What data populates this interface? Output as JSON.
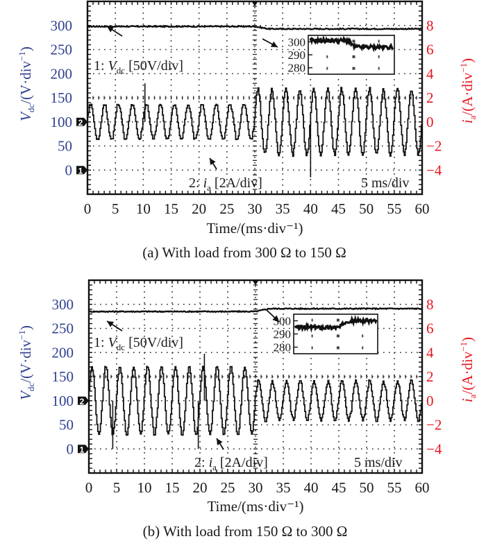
{
  "chart_data": [
    {
      "type": "line",
      "panel": "a",
      "caption": "(a) With load from 300 Ω to 150 Ω",
      "xlabel": "Time/(ms·div⁻¹)",
      "ylabel_left": {
        "main": "V",
        "sub": "dc",
        "rest": "/(V·div",
        "sup": "−1",
        "close": ")"
      },
      "ylabel_right": {
        "main": "i",
        "sub": "a",
        "rest": "/(A·div",
        "sup": "−1",
        "close": ")"
      },
      "x_ticks": [
        "0",
        "5",
        "10",
        "15",
        "20",
        "25",
        "30",
        "35",
        "40",
        "45",
        "50",
        "55",
        "60"
      ],
      "xlim": [
        0,
        60
      ],
      "y_left_ticks": [
        "300",
        "250",
        "200",
        "150",
        "100",
        "50",
        "0"
      ],
      "y_left_lim": [
        -50,
        350
      ],
      "y_right_ticks": [
        "8",
        "6",
        "4",
        "2",
        "0",
        "−2",
        "−4"
      ],
      "y_right_lim": [
        -6,
        10
      ],
      "grid": true,
      "time_scale": "5 ms/div",
      "channel_markers": [
        {
          "label": "1",
          "left_value": 0
        },
        {
          "label": "2",
          "left_value": 100
        }
      ],
      "annotations": {
        "vdc_label": {
          "prefix": "1: ",
          "var": "V",
          "sub": "dc",
          "suffix": " [50V/div]"
        },
        "ia_label": {
          "prefix": "2: ",
          "var": "i",
          "sub": "a",
          "suffix": " [2A/div]"
        }
      },
      "load_step_ms": 30,
      "series": [
        {
          "name": "Vdc",
          "unit": "V",
          "axis": "left",
          "before": {
            "t": [
              0,
              30
            ],
            "value": 298
          },
          "after": {
            "t": [
              30,
              60
            ],
            "value": 293
          }
        },
        {
          "name": "ia",
          "unit": "A",
          "axis": "right",
          "frequency_hz": 400,
          "before": {
            "t": [
              0,
              30
            ],
            "amplitude": 1.5
          },
          "after": {
            "t": [
              30,
              60
            ],
            "amplitude": 2.7
          },
          "spikes": [
            {
              "t": 10.3,
              "value": 3.2
            },
            {
              "t": 40.0,
              "value": -4.6
            }
          ]
        }
      ],
      "inset": {
        "y_ticks": [
          "300",
          "290",
          "280"
        ],
        "ylim": [
          275,
          305
        ],
        "before_value": 301,
        "after_value": 296,
        "step_fraction": 0.46
      }
    },
    {
      "type": "line",
      "panel": "b",
      "caption": "(b) With load from 150 Ω to 300 Ω",
      "xlabel": "Time/(ms·div⁻¹)",
      "ylabel_left": {
        "main": "V",
        "sub": "dc",
        "rest": "/(V·div",
        "sup": "−1",
        "close": ")"
      },
      "ylabel_right": {
        "main": "i",
        "sub": "a",
        "rest": "/(A·div",
        "sup": "−1",
        "close": ")"
      },
      "x_ticks": [
        "0",
        "5",
        "10",
        "15",
        "20",
        "25",
        "30",
        "35",
        "40",
        "45",
        "50",
        "55",
        "60"
      ],
      "xlim": [
        0,
        60
      ],
      "y_left_ticks": [
        "300",
        "250",
        "200",
        "150",
        "100",
        "50",
        "0"
      ],
      "y_left_lim": [
        -50,
        350
      ],
      "y_right_ticks": [
        "8",
        "6",
        "4",
        "2",
        "0",
        "−2",
        "−4"
      ],
      "y_right_lim": [
        -6,
        10
      ],
      "grid": true,
      "time_scale": "5 ms/div",
      "channel_markers": [
        {
          "label": "1",
          "left_value": 0
        },
        {
          "label": "2",
          "left_value": 100
        }
      ],
      "annotations": {
        "vdc_label": {
          "prefix": "1: ",
          "var": "V",
          "sub": "dc",
          "suffix": " [50V/div]"
        },
        "ia_label": {
          "prefix": "2: ",
          "var": "i",
          "sub": "a",
          "suffix": " [2A/div]"
        }
      },
      "load_step_ms": 30,
      "series": [
        {
          "name": "Vdc",
          "unit": "V",
          "axis": "left",
          "before": {
            "t": [
              0,
              30
            ],
            "value": 285
          },
          "after": {
            "t": [
              30,
              60
            ],
            "value": 291
          }
        },
        {
          "name": "ia",
          "unit": "A",
          "axis": "right",
          "frequency_hz": 400,
          "before": {
            "t": [
              0,
              30
            ],
            "amplitude": 2.8
          },
          "after": {
            "t": [
              30,
              60
            ],
            "amplitude": 1.6
          },
          "spikes": [
            {
              "t": 20.8,
              "value": 3.9
            },
            {
              "t": 4.3,
              "value": -4.0
            },
            {
              "t": 19.7,
              "value": -4.0
            }
          ]
        }
      ],
      "inset": {
        "y_ticks": [
          "300",
          "290",
          "280"
        ],
        "ylim": [
          275,
          305
        ],
        "before_value": 295,
        "after_value": 300,
        "step_fraction": 0.55
      }
    }
  ]
}
